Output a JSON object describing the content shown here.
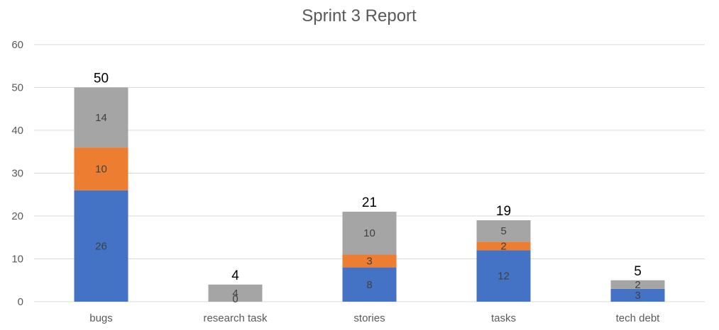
{
  "chart_data": {
    "type": "bar",
    "stacked": true,
    "title": "Sprint 3 Report",
    "xlabel": "",
    "ylabel": "",
    "ylim": [
      0,
      60
    ],
    "yticks": [
      "0",
      "10",
      "20",
      "30",
      "40",
      "50",
      "60"
    ],
    "grid": true,
    "categories": [
      "bugs",
      "research task",
      "stories",
      "tasks",
      "tech debt"
    ],
    "series": [
      {
        "values": [
          26,
          0,
          8,
          12,
          3
        ],
        "color": "#4472C4"
      },
      {
        "values": [
          10,
          0,
          3,
          2,
          0
        ],
        "color": "#ED7D31"
      },
      {
        "values": [
          14,
          4,
          10,
          5,
          2
        ],
        "color": "#A5A5A5"
      }
    ],
    "totals": [
      50,
      4,
      21,
      19,
      5
    ]
  }
}
